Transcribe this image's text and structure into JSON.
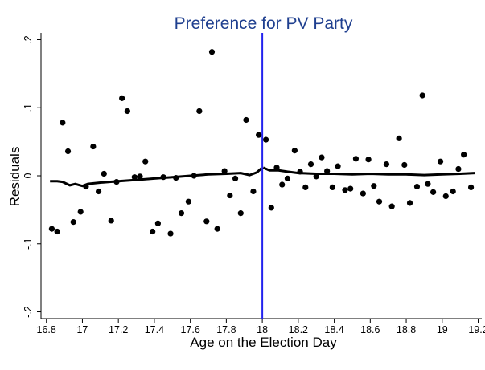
{
  "chart_data": {
    "type": "scatter",
    "title": "Preference for PV Party",
    "xlabel": "Age on the Election Day",
    "ylabel": "Residuals",
    "xlim": [
      16.77,
      19.22
    ],
    "ylim": [
      -0.21,
      0.21
    ],
    "xticks": [
      16.8,
      17,
      17.2,
      17.4,
      17.6,
      17.8,
      18,
      18.2,
      18.4,
      18.6,
      18.8,
      19,
      19.2
    ],
    "xtick_labels": [
      "16.8",
      "17",
      "17.2",
      "17.4",
      "17.6",
      "17.8",
      "18",
      "18.2",
      "18.4",
      "18.6",
      "18.8",
      "19",
      "19.2"
    ],
    "yticks": [
      -0.2,
      -0.1,
      0,
      0.1,
      0.2
    ],
    "ytick_labels": [
      "-.2",
      "-.1",
      "0",
      ".1",
      ".2"
    ],
    "cutoff": 18,
    "cutoff_color": "#2222ee",
    "point_color": "#000000",
    "line_color": "#000000",
    "grid": false,
    "legend": "none",
    "points": [
      [
        16.83,
        -0.078
      ],
      [
        16.86,
        -0.082
      ],
      [
        16.89,
        0.078
      ],
      [
        16.92,
        0.036
      ],
      [
        16.95,
        -0.068
      ],
      [
        16.99,
        -0.053
      ],
      [
        17.02,
        -0.016
      ],
      [
        17.06,
        0.043
      ],
      [
        17.09,
        -0.023
      ],
      [
        17.12,
        0.003
      ],
      [
        17.16,
        -0.066
      ],
      [
        17.19,
        -0.009
      ],
      [
        17.22,
        0.114
      ],
      [
        17.25,
        0.095
      ],
      [
        17.29,
        -0.002
      ],
      [
        17.32,
        -0.001
      ],
      [
        17.35,
        0.021
      ],
      [
        17.39,
        -0.082
      ],
      [
        17.42,
        -0.07
      ],
      [
        17.45,
        -0.002
      ],
      [
        17.49,
        -0.085
      ],
      [
        17.52,
        -0.003
      ],
      [
        17.55,
        -0.055
      ],
      [
        17.59,
        -0.038
      ],
      [
        17.62,
        0.0
      ],
      [
        17.65,
        0.095
      ],
      [
        17.69,
        -0.067
      ],
      [
        17.72,
        0.182
      ],
      [
        17.75,
        -0.078
      ],
      [
        17.79,
        0.007
      ],
      [
        17.82,
        -0.029
      ],
      [
        17.85,
        -0.004
      ],
      [
        17.88,
        -0.055
      ],
      [
        17.91,
        0.082
      ],
      [
        17.95,
        -0.023
      ],
      [
        17.98,
        0.06
      ],
      [
        18.02,
        0.053
      ],
      [
        18.05,
        -0.047
      ],
      [
        18.08,
        0.012
      ],
      [
        18.11,
        -0.013
      ],
      [
        18.14,
        -0.004
      ],
      [
        18.18,
        0.037
      ],
      [
        18.21,
        0.006
      ],
      [
        18.24,
        -0.017
      ],
      [
        18.27,
        0.017
      ],
      [
        18.3,
        -0.001
      ],
      [
        18.33,
        0.027
      ],
      [
        18.36,
        0.007
      ],
      [
        18.39,
        -0.017
      ],
      [
        18.42,
        0.014
      ],
      [
        18.46,
        -0.021
      ],
      [
        18.49,
        -0.019
      ],
      [
        18.52,
        0.025
      ],
      [
        18.56,
        -0.026
      ],
      [
        18.59,
        0.024
      ],
      [
        18.62,
        -0.015
      ],
      [
        18.65,
        -0.038
      ],
      [
        18.69,
        0.017
      ],
      [
        18.72,
        -0.045
      ],
      [
        18.76,
        0.055
      ],
      [
        18.79,
        0.016
      ],
      [
        18.82,
        -0.04
      ],
      [
        18.86,
        -0.016
      ],
      [
        18.89,
        0.118
      ],
      [
        18.92,
        -0.012
      ],
      [
        18.95,
        -0.024
      ],
      [
        18.99,
        0.021
      ],
      [
        19.02,
        -0.03
      ],
      [
        19.06,
        -0.023
      ],
      [
        19.09,
        0.01
      ],
      [
        19.12,
        0.031
      ],
      [
        19.16,
        -0.017
      ]
    ],
    "fit_left": [
      [
        16.82,
        -0.008
      ],
      [
        16.86,
        -0.008
      ],
      [
        16.89,
        -0.009
      ],
      [
        16.93,
        -0.014
      ],
      [
        16.96,
        -0.012
      ],
      [
        17.0,
        -0.015
      ],
      [
        17.03,
        -0.012
      ],
      [
        17.1,
        -0.01
      ],
      [
        17.2,
        -0.008
      ],
      [
        17.3,
        -0.006
      ],
      [
        17.4,
        -0.004
      ],
      [
        17.5,
        -0.002
      ],
      [
        17.6,
        0.0
      ],
      [
        17.7,
        0.002
      ],
      [
        17.8,
        0.003
      ],
      [
        17.88,
        0.004
      ],
      [
        17.93,
        0.001
      ],
      [
        17.97,
        0.005
      ],
      [
        17.995,
        0.011
      ]
    ],
    "fit_right": [
      [
        18.005,
        0.012
      ],
      [
        18.04,
        0.008
      ],
      [
        18.09,
        0.008
      ],
      [
        18.14,
        0.006
      ],
      [
        18.2,
        0.004
      ],
      [
        18.3,
        0.003
      ],
      [
        18.4,
        0.003
      ],
      [
        18.5,
        0.002
      ],
      [
        18.6,
        0.003
      ],
      [
        18.7,
        0.002
      ],
      [
        18.8,
        0.002
      ],
      [
        18.9,
        0.001
      ],
      [
        19.0,
        0.002
      ],
      [
        19.1,
        0.003
      ],
      [
        19.18,
        0.004
      ]
    ]
  }
}
